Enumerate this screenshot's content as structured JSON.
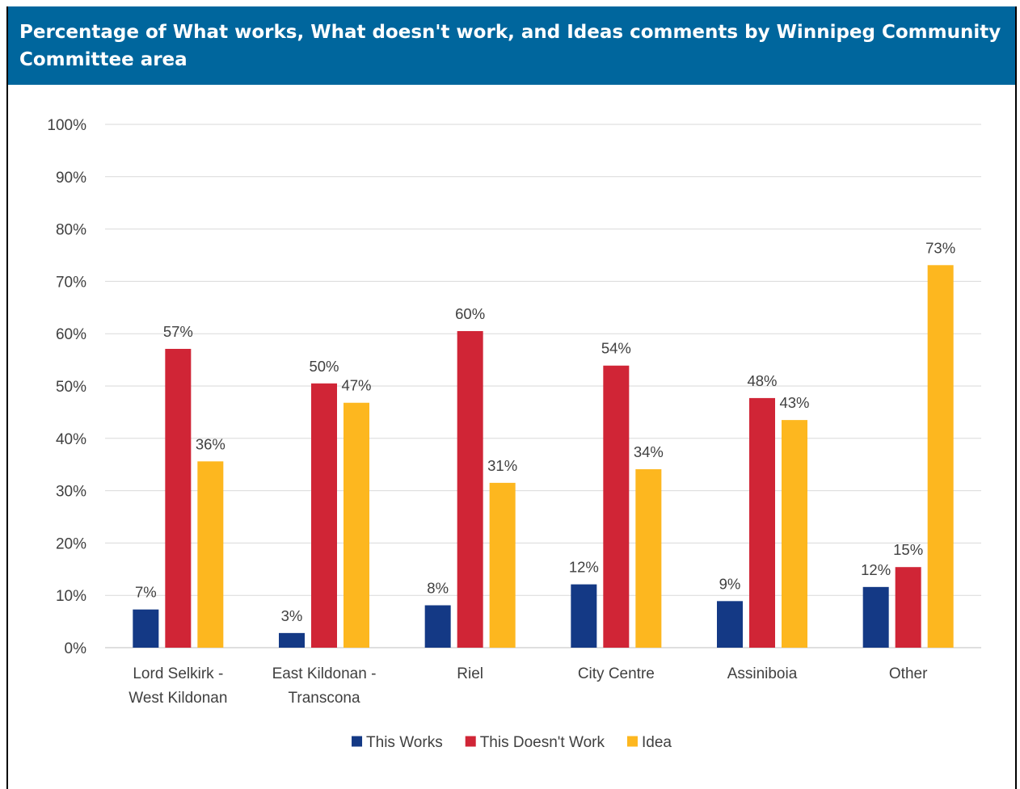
{
  "header": {
    "title": "Percentage of What works, What doesn't work, and Ideas comments by Winnipeg Community Committee area"
  },
  "chart_data": {
    "type": "bar",
    "title": "Percentage of What works, What doesn't work, and Ideas comments by Winnipeg Community Committee area",
    "categories": [
      [
        "Lord Selkirk -",
        "West Kildonan"
      ],
      [
        "East Kildonan -",
        "Transcona"
      ],
      [
        "Riel"
      ],
      [
        "City Centre"
      ],
      [
        "Assiniboia"
      ],
      [
        "Other"
      ]
    ],
    "series": [
      {
        "name": "This Works",
        "color": "#143985",
        "values": [
          7.3,
          2.8,
          8.1,
          12.1,
          8.9,
          11.6
        ],
        "labels": [
          "7%",
          "3%",
          "8%",
          "12%",
          "9%",
          "12%"
        ]
      },
      {
        "name": "This Doesn't Work",
        "color": "#d02536",
        "values": [
          57.1,
          50.5,
          60.5,
          53.9,
          47.7,
          15.4
        ],
        "labels": [
          "57%",
          "50%",
          "60%",
          "54%",
          "48%",
          "15%"
        ]
      },
      {
        "name": "Idea",
        "color": "#fdb71f",
        "values": [
          35.6,
          46.8,
          31.5,
          34.1,
          43.5,
          73.1
        ],
        "labels": [
          "36%",
          "47%",
          "31%",
          "34%",
          "43%",
          "73%"
        ]
      }
    ],
    "ylim": [
      0,
      100
    ],
    "yticks": [
      0,
      10,
      20,
      30,
      40,
      50,
      60,
      70,
      80,
      90,
      100
    ],
    "ytick_labels": [
      "0%",
      "10%",
      "20%",
      "30%",
      "40%",
      "50%",
      "60%",
      "70%",
      "80%",
      "90%",
      "100%"
    ],
    "xlabel": "",
    "ylabel": "",
    "grid": true,
    "legend": "bottom"
  }
}
